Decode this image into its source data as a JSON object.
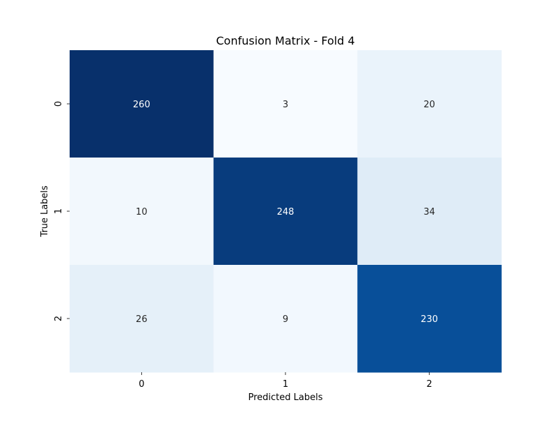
{
  "chart_data": {
    "type": "heatmap",
    "title": "Confusion Matrix - Fold 4",
    "xlabel": "Predicted Labels",
    "ylabel": "True Labels",
    "x_categories": [
      "0",
      "1",
      "2"
    ],
    "y_categories": [
      "0",
      "1",
      "2"
    ],
    "values": [
      [
        260,
        3,
        20
      ],
      [
        10,
        248,
        34
      ],
      [
        26,
        9,
        230
      ]
    ],
    "colormap": "Blues",
    "value_range": [
      3,
      260
    ],
    "colorbar": false,
    "annotations": true,
    "grid": false
  }
}
